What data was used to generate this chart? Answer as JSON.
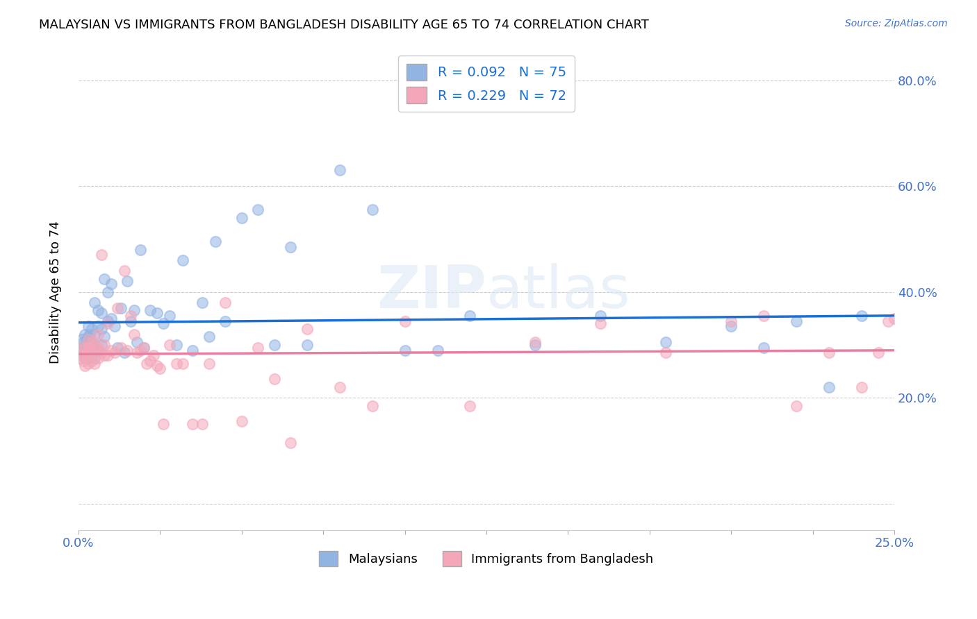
{
  "title": "MALAYSIAN VS IMMIGRANTS FROM BANGLADESH DISABILITY AGE 65 TO 74 CORRELATION CHART",
  "source": "Source: ZipAtlas.com",
  "ylabel": "Disability Age 65 to 74",
  "xlim": [
    0.0,
    0.25
  ],
  "ylim": [
    -0.05,
    0.85
  ],
  "yticks": [
    0.0,
    0.2,
    0.4,
    0.6,
    0.8
  ],
  "ytick_labels": [
    "",
    "20.0%",
    "40.0%",
    "60.0%",
    "80.0%"
  ],
  "legend_r1": "R = 0.092",
  "legend_n1": "N = 75",
  "legend_r2": "R = 0.229",
  "legend_n2": "N = 72",
  "color_malaysian": "#92b4e3",
  "color_bangladesh": "#f4a7b9",
  "trendline_malaysian": "#1a6fd4",
  "trendline_bangladesh": "#e87fa0",
  "watermark_zip": "ZIP",
  "watermark_atlas": "atlas",
  "legend_label1": "Malaysians",
  "legend_label2": "Immigrants from Bangladesh",
  "malaysian_x": [
    0.0005,
    0.001,
    0.001,
    0.0015,
    0.0015,
    0.002,
    0.002,
    0.002,
    0.0025,
    0.0025,
    0.003,
    0.003,
    0.003,
    0.003,
    0.0035,
    0.0035,
    0.004,
    0.004,
    0.004,
    0.0045,
    0.005,
    0.005,
    0.005,
    0.005,
    0.006,
    0.006,
    0.006,
    0.007,
    0.007,
    0.007,
    0.008,
    0.008,
    0.009,
    0.009,
    0.01,
    0.01,
    0.011,
    0.012,
    0.013,
    0.014,
    0.015,
    0.016,
    0.017,
    0.018,
    0.019,
    0.02,
    0.022,
    0.024,
    0.026,
    0.028,
    0.03,
    0.032,
    0.035,
    0.038,
    0.04,
    0.042,
    0.045,
    0.05,
    0.055,
    0.06,
    0.065,
    0.07,
    0.08,
    0.09,
    0.1,
    0.11,
    0.12,
    0.14,
    0.16,
    0.18,
    0.2,
    0.21,
    0.22,
    0.23,
    0.24
  ],
  "malaysian_y": [
    0.285,
    0.295,
    0.31,
    0.28,
    0.305,
    0.275,
    0.295,
    0.32,
    0.285,
    0.31,
    0.275,
    0.295,
    0.315,
    0.335,
    0.29,
    0.32,
    0.28,
    0.305,
    0.33,
    0.295,
    0.275,
    0.3,
    0.32,
    0.38,
    0.29,
    0.335,
    0.365,
    0.3,
    0.33,
    0.36,
    0.315,
    0.425,
    0.345,
    0.4,
    0.35,
    0.415,
    0.335,
    0.295,
    0.37,
    0.285,
    0.42,
    0.345,
    0.365,
    0.305,
    0.48,
    0.295,
    0.365,
    0.36,
    0.34,
    0.355,
    0.3,
    0.46,
    0.29,
    0.38,
    0.315,
    0.495,
    0.345,
    0.54,
    0.555,
    0.3,
    0.485,
    0.3,
    0.63,
    0.555,
    0.29,
    0.29,
    0.355,
    0.3,
    0.355,
    0.305,
    0.335,
    0.295,
    0.345,
    0.22,
    0.355
  ],
  "bangladesh_x": [
    0.0005,
    0.001,
    0.001,
    0.0015,
    0.002,
    0.002,
    0.002,
    0.0025,
    0.003,
    0.003,
    0.003,
    0.003,
    0.004,
    0.004,
    0.004,
    0.005,
    0.005,
    0.005,
    0.006,
    0.006,
    0.006,
    0.007,
    0.007,
    0.008,
    0.008,
    0.009,
    0.009,
    0.01,
    0.011,
    0.012,
    0.013,
    0.014,
    0.015,
    0.016,
    0.017,
    0.018,
    0.019,
    0.02,
    0.021,
    0.022,
    0.023,
    0.024,
    0.025,
    0.026,
    0.028,
    0.03,
    0.032,
    0.035,
    0.038,
    0.04,
    0.045,
    0.05,
    0.055,
    0.06,
    0.065,
    0.07,
    0.08,
    0.09,
    0.1,
    0.12,
    0.14,
    0.16,
    0.18,
    0.2,
    0.21,
    0.22,
    0.23,
    0.24,
    0.245,
    0.248,
    0.25,
    0.252
  ],
  "bangladesh_y": [
    0.275,
    0.28,
    0.295,
    0.27,
    0.26,
    0.28,
    0.295,
    0.285,
    0.265,
    0.28,
    0.295,
    0.31,
    0.27,
    0.29,
    0.305,
    0.265,
    0.285,
    0.3,
    0.275,
    0.295,
    0.32,
    0.47,
    0.285,
    0.28,
    0.3,
    0.28,
    0.34,
    0.29,
    0.285,
    0.37,
    0.295,
    0.44,
    0.29,
    0.355,
    0.32,
    0.285,
    0.29,
    0.295,
    0.265,
    0.27,
    0.28,
    0.26,
    0.255,
    0.15,
    0.3,
    0.265,
    0.265,
    0.15,
    0.15,
    0.265,
    0.38,
    0.155,
    0.295,
    0.235,
    0.115,
    0.33,
    0.22,
    0.185,
    0.345,
    0.185,
    0.305,
    0.34,
    0.285,
    0.345,
    0.355,
    0.185,
    0.285,
    0.22,
    0.285,
    0.345,
    0.35,
    0.36
  ]
}
